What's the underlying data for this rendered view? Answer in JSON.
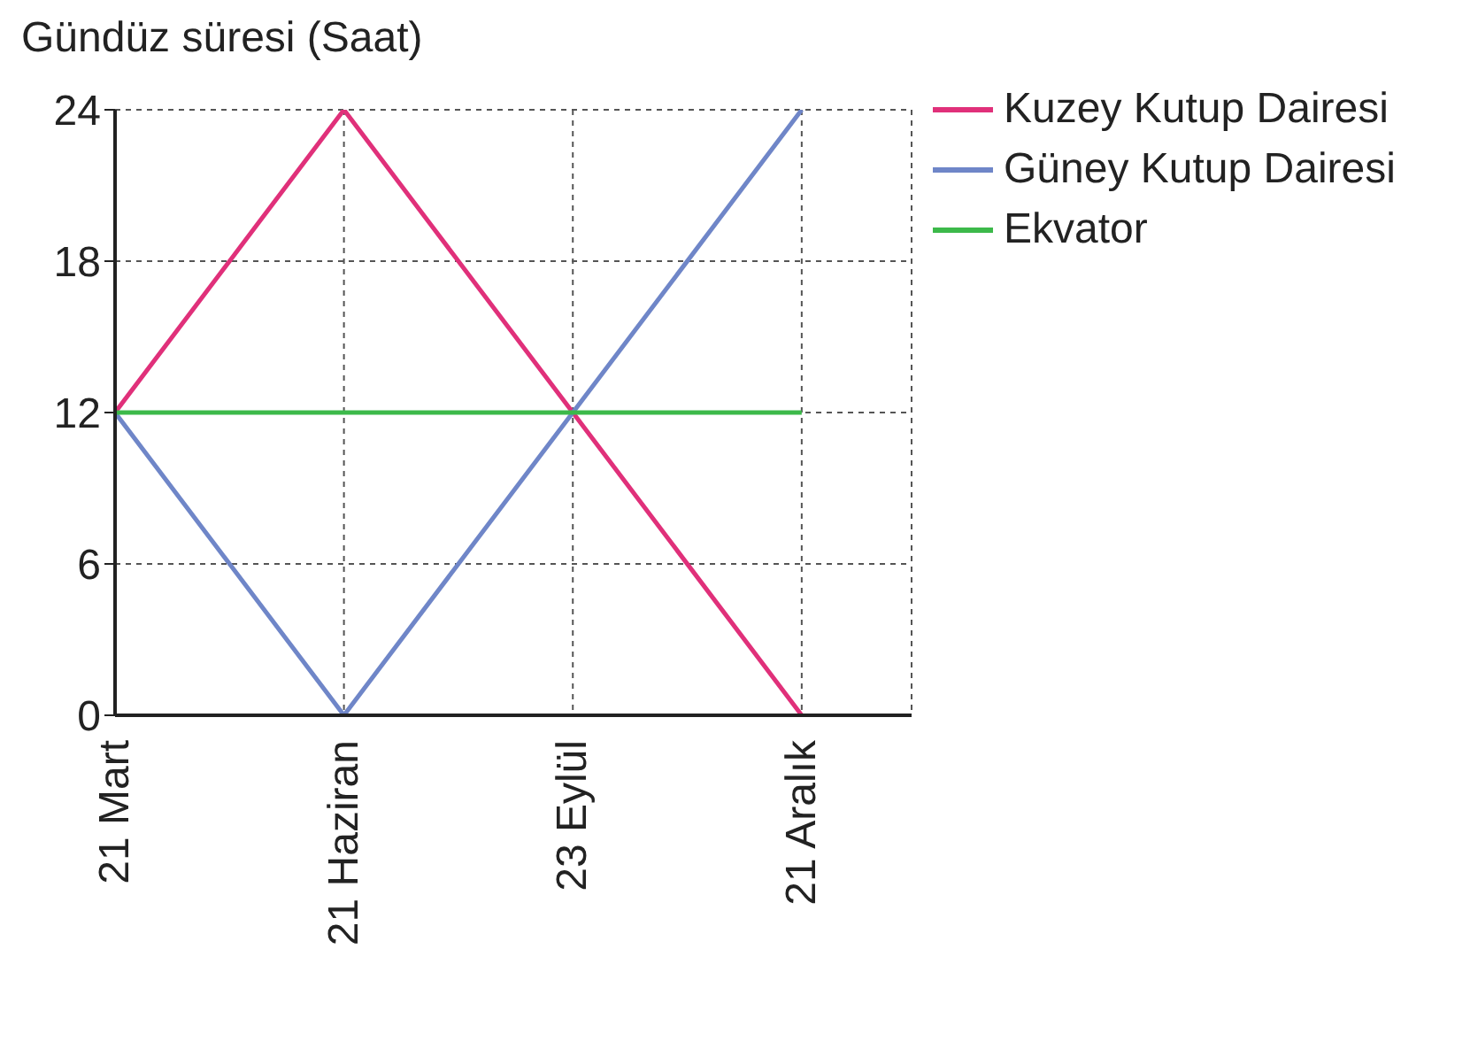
{
  "chart_data": {
    "type": "line",
    "ylabel": "Gündüz süresi (Saat)",
    "categories": [
      "21 Mart",
      "21 Haziran",
      "23 Eylül",
      "21 Aralık"
    ],
    "series": [
      {
        "name": "Kuzey Kutup Dairesi",
        "color": "#e0307a",
        "values": [
          12,
          24,
          12,
          0
        ]
      },
      {
        "name": "Güney Kutup Dairesi",
        "color": "#6f86c8",
        "values": [
          12,
          0,
          12,
          24
        ]
      },
      {
        "name": "Ekvator",
        "color": "#3cb94a",
        "values": [
          12,
          12,
          12,
          12
        ]
      }
    ],
    "ylim": [
      0,
      24
    ],
    "yticks": [
      0,
      6,
      12,
      18,
      24
    ],
    "grid": true,
    "legend": "top right",
    "marker": "none",
    "line_style": "solid"
  }
}
